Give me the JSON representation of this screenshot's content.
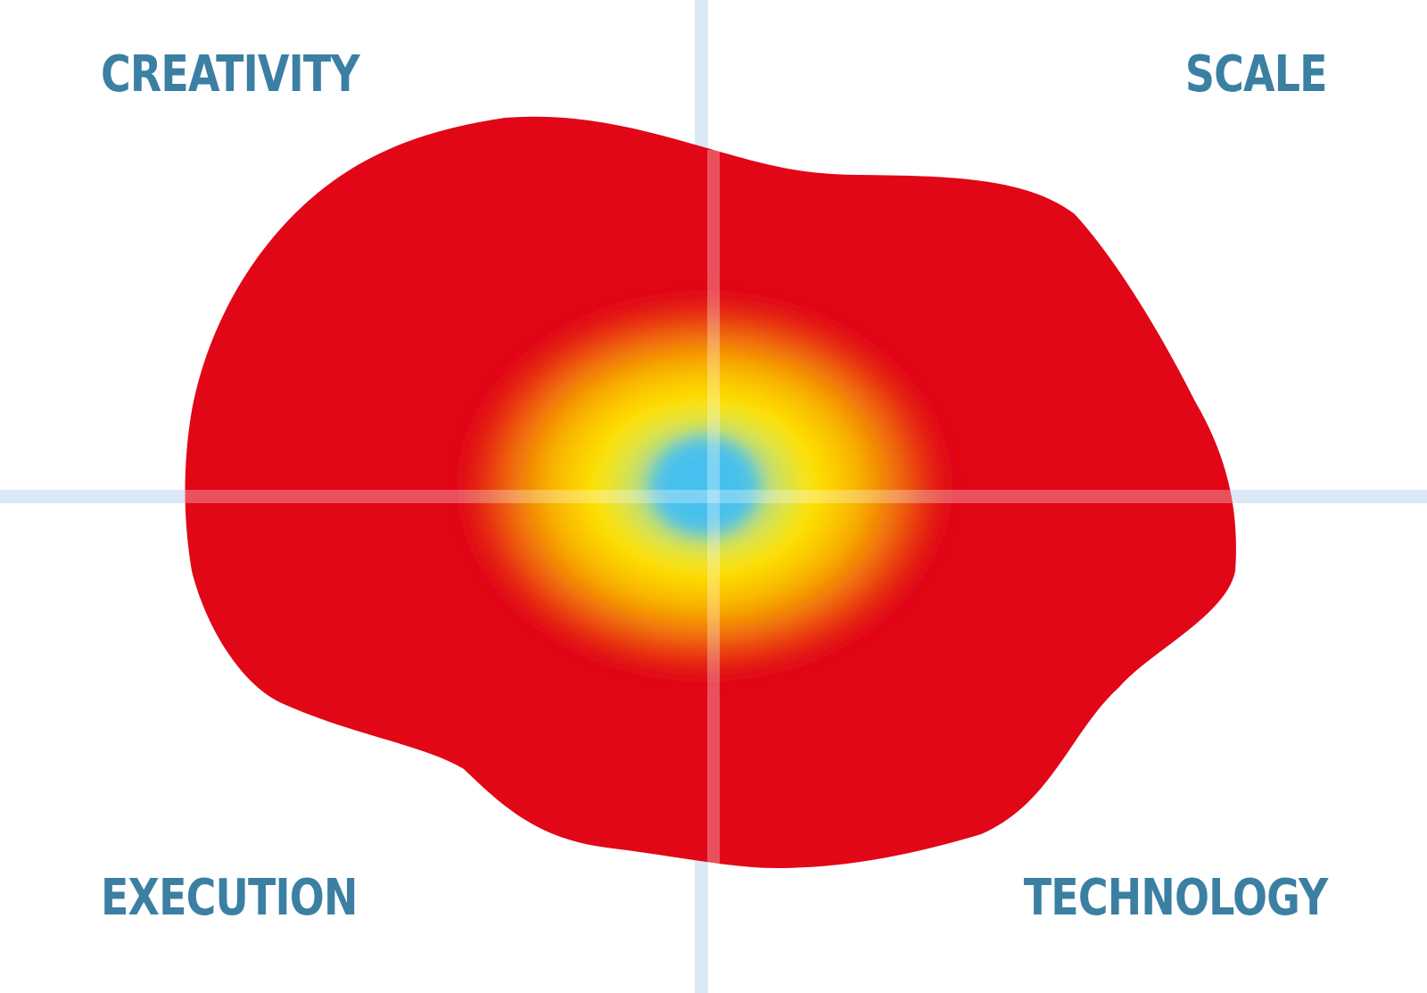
{
  "labels": {
    "top_left": "CREATIVITY",
    "top_right": "SCALE",
    "bottom_left": "EXECUTION",
    "bottom_right": "TECHNOLOGY"
  },
  "colors": {
    "label": "#3b7fa3",
    "axis": "#dbe9f7",
    "blob": "#e10717",
    "glow_outer": "#f07a0a",
    "glow_mid": "#ffe100",
    "glow_inner": "#bfe06a",
    "core": "#45c0f0"
  }
}
